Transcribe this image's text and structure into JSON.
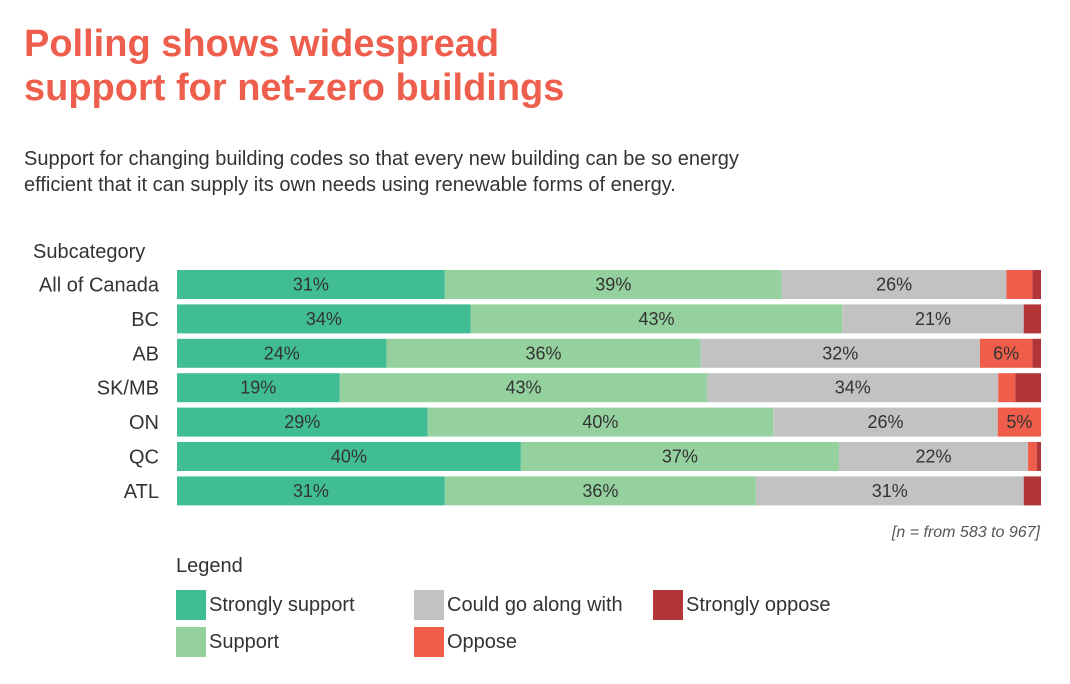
{
  "title_lines": [
    "Polling shows widespread",
    "support for net-zero buildings"
  ],
  "subtitle_lines": [
    "Support for changing building codes so that every new building can be so energy",
    "efficient that it can supply its own needs using renewable forms of energy."
  ],
  "chart_data": {
    "type": "bar",
    "orientation": "horizontal",
    "stacked": true,
    "category_axis_title": "Subcategory",
    "categories": [
      "All of Canada",
      "BC",
      "AB",
      "SK/MB",
      "ON",
      "QC",
      "ATL"
    ],
    "series": [
      {
        "name": "Strongly support",
        "color": "#41bd96",
        "values": [
          31,
          34,
          24,
          19,
          29,
          40,
          31
        ],
        "labels": [
          "31%",
          "34%",
          "24%",
          "19%",
          "29%",
          "40%",
          "31%"
        ]
      },
      {
        "name": "Support",
        "color": "#94d19e",
        "values": [
          39,
          43,
          36,
          43,
          40,
          37,
          36
        ],
        "labels": [
          "39%",
          "43%",
          "36%",
          "43%",
          "40%",
          "37%",
          "36%"
        ]
      },
      {
        "name": "Could go along with",
        "color": "#c2c2c2",
        "values": [
          26,
          21,
          32,
          34,
          26,
          22,
          31
        ],
        "labels": [
          "26%",
          "21%",
          "32%",
          "34%",
          "26%",
          "22%",
          "31%"
        ]
      },
      {
        "name": "Oppose",
        "color": "#f05e4b",
        "values": [
          3,
          0,
          6,
          2,
          5,
          1,
          0
        ],
        "labels": [
          "",
          "",
          "6%",
          "",
          "5%",
          "",
          ""
        ]
      },
      {
        "name": "Strongly oppose",
        "color": "#b23537",
        "values": [
          1,
          2,
          1,
          3,
          0,
          0.5,
          2
        ],
        "labels": [
          "",
          "",
          "",
          "",
          "",
          "",
          ""
        ]
      }
    ],
    "note": "[n = from 583 to 967]",
    "legend_title": "Legend",
    "legend_placement": "bottom",
    "grid": false
  },
  "legend": [
    {
      "label": "Strongly support",
      "color": "#41bd96"
    },
    {
      "label": "Could go along with",
      "color": "#c2c2c2"
    },
    {
      "label": "Strongly oppose",
      "color": "#b23537"
    },
    {
      "label": "Support",
      "color": "#94d19e"
    },
    {
      "label": "Oppose",
      "color": "#f05e4b"
    }
  ]
}
